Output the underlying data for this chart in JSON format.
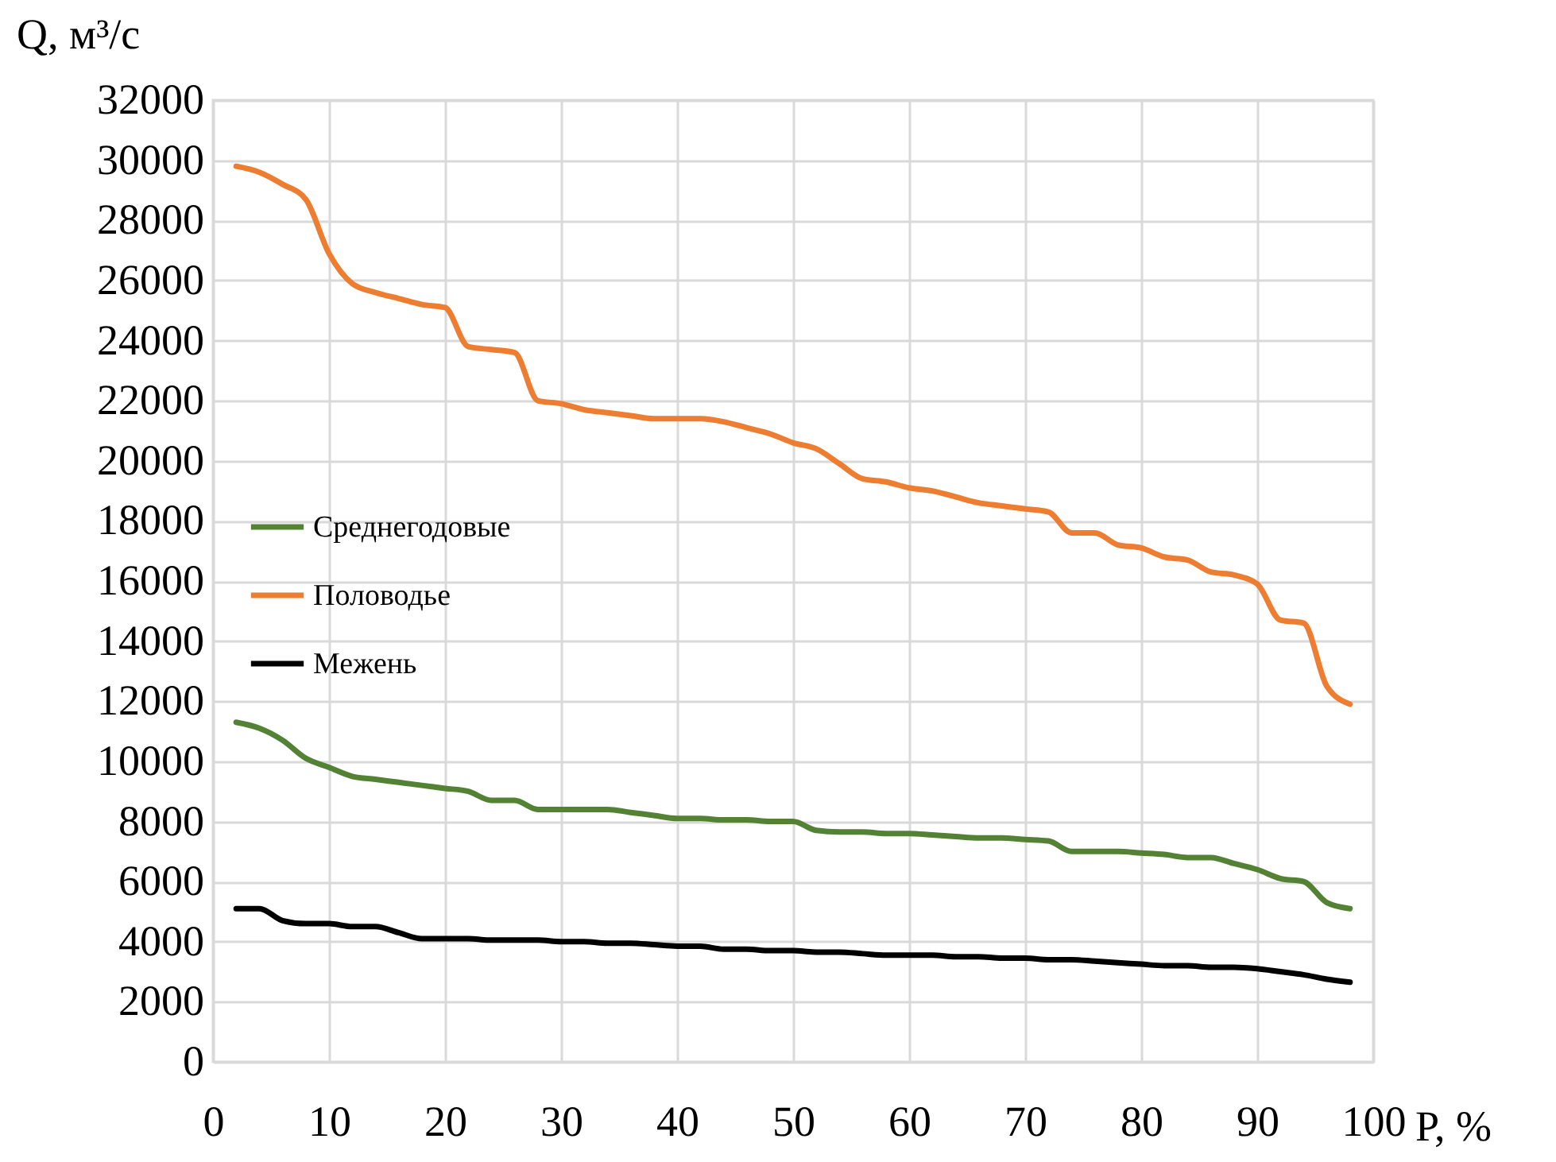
{
  "chart_data": {
    "type": "line",
    "xlabel": "P, %",
    "ylabel": "Q, м³/с",
    "x": [
      2,
      4,
      6,
      8,
      10,
      12,
      14,
      16,
      18,
      20,
      22,
      24,
      26,
      28,
      30,
      32,
      34,
      36,
      38,
      40,
      42,
      44,
      46,
      48,
      50,
      52,
      54,
      56,
      58,
      60,
      62,
      64,
      66,
      68,
      70,
      72,
      74,
      76,
      78,
      80,
      82,
      84,
      86,
      88,
      90,
      92,
      94,
      96,
      98
    ],
    "series": [
      {
        "name": "Среднегодовые",
        "color": "#548235",
        "values": [
          11300,
          11100,
          10700,
          10100,
          9800,
          9500,
          9400,
          9300,
          9200,
          9100,
          9000,
          8700,
          8700,
          8400,
          8400,
          8400,
          8400,
          8300,
          8200,
          8100,
          8100,
          8050,
          8050,
          8000,
          8000,
          7700,
          7650,
          7650,
          7600,
          7600,
          7550,
          7500,
          7450,
          7450,
          7400,
          7350,
          7000,
          7000,
          7000,
          6950,
          6900,
          6800,
          6800,
          6600,
          6400,
          6100,
          6000,
          5300,
          5100
        ]
      },
      {
        "name": "Половодье",
        "color": "#ed7d31",
        "values": [
          29800,
          29600,
          29200,
          28700,
          26900,
          25900,
          25600,
          25400,
          25200,
          25100,
          23800,
          23700,
          23600,
          22000,
          21900,
          21700,
          21600,
          21500,
          21400,
          21400,
          21400,
          21300,
          21100,
          20900,
          20600,
          20400,
          19900,
          19400,
          19300,
          19100,
          19000,
          18800,
          18600,
          18500,
          18400,
          18300,
          17600,
          17600,
          17200,
          17100,
          16800,
          16700,
          16300,
          16200,
          15900,
          14700,
          14600,
          12500,
          11900
        ]
      },
      {
        "name": "Межень",
        "color": "#000000",
        "values": [
          5100,
          5100,
          4700,
          4600,
          4600,
          4500,
          4500,
          4300,
          4100,
          4100,
          4100,
          4050,
          4050,
          4050,
          4000,
          4000,
          3950,
          3950,
          3900,
          3850,
          3850,
          3750,
          3750,
          3700,
          3700,
          3650,
          3650,
          3600,
          3550,
          3550,
          3550,
          3500,
          3500,
          3450,
          3450,
          3400,
          3400,
          3350,
          3300,
          3250,
          3200,
          3200,
          3150,
          3150,
          3100,
          3000,
          2900,
          2750,
          2650
        ]
      }
    ],
    "xlim": [
      0,
      100
    ],
    "xticks": [
      0,
      10,
      20,
      30,
      40,
      50,
      60,
      70,
      80,
      90,
      100
    ],
    "ylim": [
      0,
      32000
    ],
    "yticks": [
      0,
      2000,
      4000,
      6000,
      8000,
      10000,
      12000,
      14000,
      16000,
      18000,
      20000,
      22000,
      24000,
      26000,
      28000,
      30000,
      32000
    ],
    "grid": true,
    "legend": "left",
    "marker": "none",
    "line_style": "solid"
  }
}
